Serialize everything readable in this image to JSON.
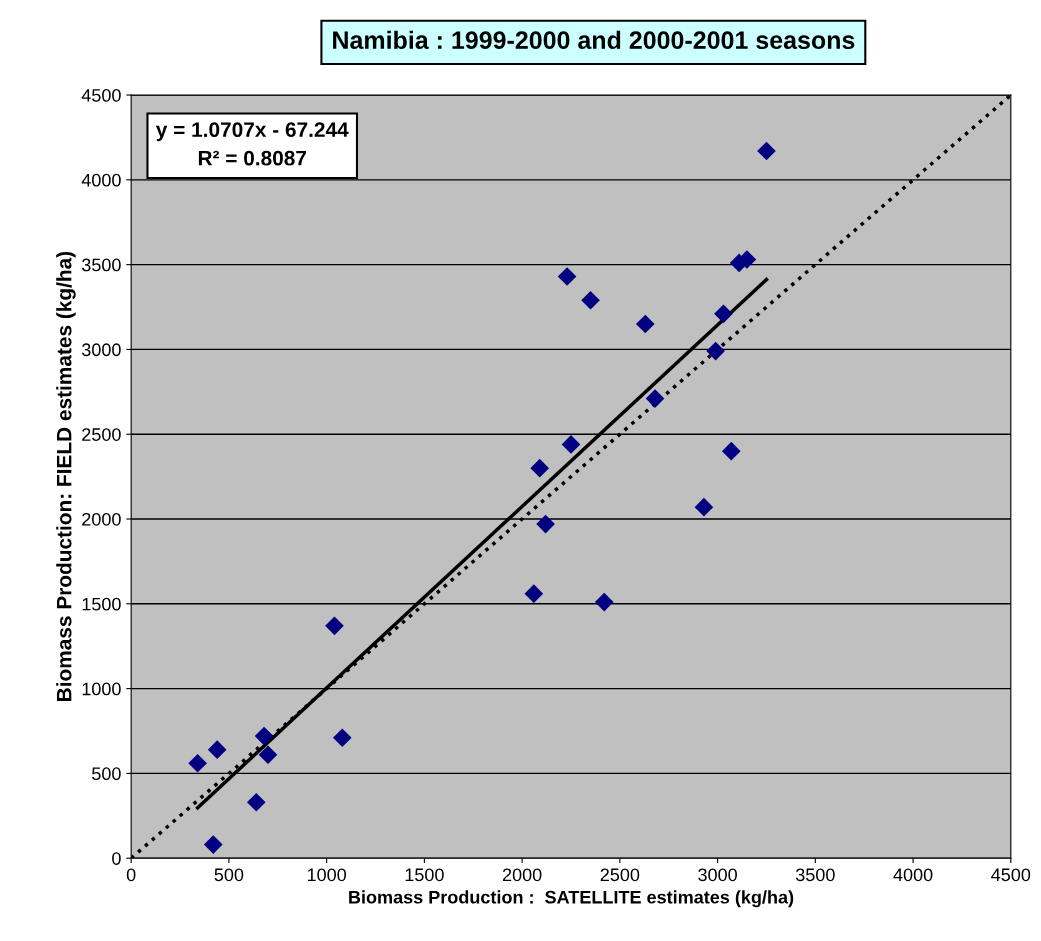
{
  "chart_data": {
    "type": "scatter",
    "title": "Namibia : 1999-2000 and 2000-2001 seasons",
    "xlabel": "Biomass Production :  SATELLITE estimates (kg/ha)",
    "ylabel": "Biomass Production: FIELD estimates (kg/ha)",
    "annotations": [
      "y = 1.0707x - 67.244\nR² = 0.8087"
    ],
    "xlim": [
      0,
      4500
    ],
    "ylim": [
      0,
      4500
    ],
    "xticks": [
      0,
      500,
      1000,
      1500,
      2000,
      2500,
      3000,
      3500,
      4000,
      4500
    ],
    "yticks": [
      0,
      500,
      1000,
      1500,
      2000,
      2500,
      3000,
      3500,
      4000,
      4500
    ],
    "grid": "y",
    "marker": "diamond",
    "series": [
      {
        "color": "#000080",
        "x": [
          340,
          440,
          420,
          640,
          680,
          700,
          1040,
          1080,
          2060,
          2090,
          2120,
          2230,
          2250,
          2350,
          2420,
          2630,
          2680,
          2930,
          2990,
          3030,
          3070,
          3110,
          3150,
          3250
        ],
        "values": [
          560,
          640,
          80,
          330,
          720,
          610,
          1370,
          710,
          1560,
          2300,
          1970,
          3430,
          2440,
          3290,
          1510,
          3150,
          2710,
          2070,
          2990,
          3210,
          2400,
          3510,
          3530,
          4170
        ]
      },
      {
        "type": "line",
        "color": "#000000",
        "line_style": "solid",
        "marker": "none",
        "x": [
          340,
          3250
        ],
        "values": [
          297,
          3412
        ]
      },
      {
        "type": "line",
        "color": "#000000",
        "line_style": "dotted",
        "marker": "none",
        "x": [
          0,
          4500
        ],
        "values": [
          0,
          4500
        ]
      }
    ]
  }
}
